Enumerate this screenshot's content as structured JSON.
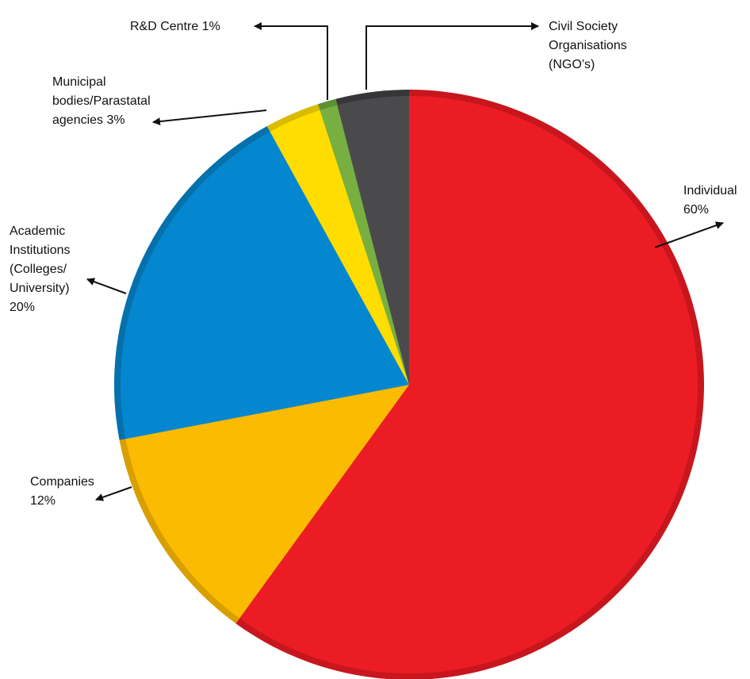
{
  "chart_data": {
    "type": "pie",
    "title": "",
    "slices": [
      {
        "key": "individual",
        "label_lines": [
          "Individual",
          "60%"
        ],
        "value": 60,
        "color": "#ec1c24",
        "edge": "#c7161d"
      },
      {
        "key": "companies",
        "label_lines": [
          "Companies",
          "12%"
        ],
        "value": 12,
        "color": "#fbbb00",
        "edge": "#d89f00"
      },
      {
        "key": "academic",
        "label_lines": [
          "Academic",
          "Institutions",
          "(Colleges/",
          "University)",
          "20%"
        ],
        "value": 20,
        "color": "#0587cf",
        "edge": "#0471ad"
      },
      {
        "key": "municipal",
        "label_lines": [
          "Municipal",
          "bodies/Parastatal",
          "agencies 3%"
        ],
        "value": 3,
        "color": "#ffdd00",
        "edge": "#d9bb00"
      },
      {
        "key": "rd-centre",
        "label_lines": [
          "R&D Centre 1%"
        ],
        "value": 1,
        "color": "#77b041",
        "edge": "#5f8f33"
      },
      {
        "key": "ngo",
        "label_lines": [
          "Civil Society",
          "Organisations",
          "(NGO’s)"
        ],
        "value": 4,
        "color": "#4a4a4c",
        "edge": "#363638"
      }
    ],
    "legend": "none",
    "start": "top",
    "direction": "clockwise"
  }
}
